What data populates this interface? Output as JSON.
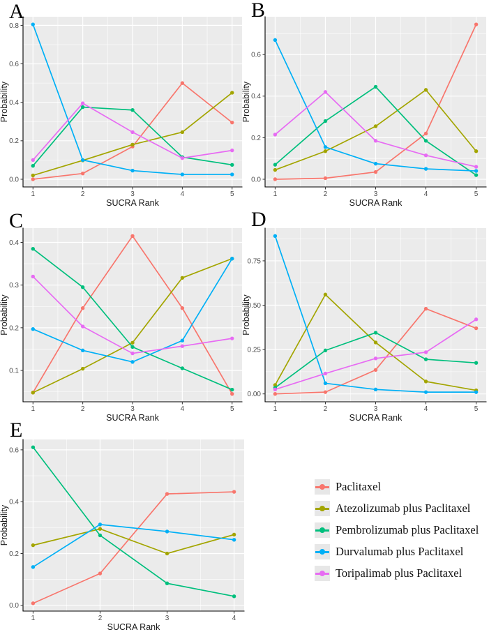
{
  "figure_description": "SUCRA rank probability line charts, panels A-E",
  "colors": {
    "panel_background": "#EBEBEB",
    "gridline": "#FFFFFF",
    "axis_line": "#000000",
    "tick_text": "#4D4D4D",
    "axis_title_text": "#1A1A1A",
    "legend_key_background": "#E7E7E7",
    "paclitaxel": "#F8766D",
    "atezolizumab": "#A3A500",
    "pembrolizumab": "#00BF7D",
    "durvalumab": "#00B0F6",
    "toripalimab": "#E76BF3"
  },
  "legend": {
    "items": [
      {
        "label": "Paclitaxel",
        "color": "#F8766D"
      },
      {
        "label": "Atezolizumab plus Paclitaxel",
        "color": "#A3A500"
      },
      {
        "label": "Pembrolizumab plus Paclitaxel",
        "color": "#00BF7D"
      },
      {
        "label": "Durvalumab plus Paclitaxel",
        "color": "#00B0F6"
      },
      {
        "label": "Toripalimab plus Paclitaxel",
        "color": "#E76BF3"
      }
    ]
  },
  "chart_data": [
    {
      "panel_label": "A",
      "type": "line",
      "xlabel": "SUCRA Rank",
      "ylabel": "Probability",
      "x": [
        1,
        2,
        3,
        4,
        5
      ],
      "xlim": [
        0.8,
        5.2
      ],
      "x_ticks": [
        1,
        2,
        3,
        4,
        5
      ],
      "x_tick_labels": [
        "1",
        "2",
        "3",
        "4",
        "5"
      ],
      "x_minor": [
        1.5,
        2.5,
        3.5,
        4.5
      ],
      "ylim": [
        -0.04,
        0.845
      ],
      "y_ticks": [
        0.0,
        0.2,
        0.4,
        0.6,
        0.8
      ],
      "y_tick_labels": [
        "0.0",
        "0.2",
        "0.4",
        "0.6",
        "0.8"
      ],
      "y_minor": [
        0.1,
        0.3,
        0.5,
        0.7
      ],
      "series": [
        {
          "name": "Paclitaxel",
          "color": "#F8766D",
          "values": [
            0.0,
            0.03,
            0.17,
            0.5,
            0.295
          ]
        },
        {
          "name": "Atezolizumab plus Paclitaxel",
          "color": "#A3A500",
          "values": [
            0.02,
            0.098,
            0.18,
            0.245,
            0.45
          ]
        },
        {
          "name": "Pembrolizumab plus Paclitaxel",
          "color": "#00BF7D",
          "values": [
            0.07,
            0.375,
            0.36,
            0.115,
            0.075
          ]
        },
        {
          "name": "Durvalumab plus Paclitaxel",
          "color": "#00B0F6",
          "values": [
            0.805,
            0.1,
            0.045,
            0.025,
            0.025
          ]
        },
        {
          "name": "Toripalimab plus Paclitaxel",
          "color": "#E76BF3",
          "values": [
            0.1,
            0.395,
            0.245,
            0.11,
            0.15
          ]
        }
      ]
    },
    {
      "panel_label": "B",
      "type": "line",
      "xlabel": "SUCRA Rank",
      "ylabel": "Probability",
      "x": [
        1,
        2,
        3,
        4,
        5
      ],
      "xlim": [
        0.8,
        5.2
      ],
      "x_ticks": [
        1,
        2,
        3,
        4,
        5
      ],
      "x_tick_labels": [
        "1",
        "2",
        "3",
        "4",
        "5"
      ],
      "x_minor": [
        1.5,
        2.5,
        3.5,
        4.5
      ],
      "ylim": [
        -0.037,
        0.782
      ],
      "y_ticks": [
        0.0,
        0.2,
        0.4,
        0.6
      ],
      "y_tick_labels": [
        "0.0",
        "0.2",
        "0.4",
        "0.6"
      ],
      "y_minor": [
        0.1,
        0.3,
        0.5,
        0.7
      ],
      "series": [
        {
          "name": "Paclitaxel",
          "color": "#F8766D",
          "values": [
            0.0,
            0.005,
            0.035,
            0.22,
            0.745
          ]
        },
        {
          "name": "Atezolizumab plus Paclitaxel",
          "color": "#A3A500",
          "values": [
            0.045,
            0.135,
            0.255,
            0.43,
            0.135
          ]
        },
        {
          "name": "Pembrolizumab plus Paclitaxel",
          "color": "#00BF7D",
          "values": [
            0.07,
            0.28,
            0.445,
            0.185,
            0.02
          ]
        },
        {
          "name": "Durvalumab plus Paclitaxel",
          "color": "#00B0F6",
          "values": [
            0.67,
            0.155,
            0.075,
            0.05,
            0.04
          ]
        },
        {
          "name": "Toripalimab plus Paclitaxel",
          "color": "#E76BF3",
          "values": [
            0.215,
            0.42,
            0.185,
            0.115,
            0.06
          ]
        }
      ]
    },
    {
      "panel_label": "C",
      "type": "line",
      "xlabel": "SUCRA Rank",
      "ylabel": "Probability",
      "x": [
        1,
        2,
        3,
        4,
        5
      ],
      "xlim": [
        0.8,
        5.2
      ],
      "x_ticks": [
        1,
        2,
        3,
        4,
        5
      ],
      "x_tick_labels": [
        "1",
        "2",
        "3",
        "4",
        "5"
      ],
      "x_minor": [
        1.5,
        2.5,
        3.5,
        4.5
      ],
      "ylim": [
        0.0265,
        0.4335
      ],
      "y_ticks": [
        0.1,
        0.2,
        0.3,
        0.4
      ],
      "y_tick_labels": [
        "0.1",
        "0.2",
        "0.3",
        "0.4"
      ],
      "y_minor": [
        0.05,
        0.15,
        0.25,
        0.35
      ],
      "series": [
        {
          "name": "Paclitaxel",
          "color": "#F8766D",
          "values": [
            0.048,
            0.246,
            0.415,
            0.246,
            0.045
          ]
        },
        {
          "name": "Atezolizumab plus Paclitaxel",
          "color": "#A3A500",
          "values": [
            0.048,
            0.104,
            0.165,
            0.317,
            0.362
          ]
        },
        {
          "name": "Pembrolizumab plus Paclitaxel",
          "color": "#00BF7D",
          "values": [
            0.385,
            0.295,
            0.155,
            0.105,
            0.055
          ]
        },
        {
          "name": "Durvalumab plus Paclitaxel",
          "color": "#00B0F6",
          "values": [
            0.197,
            0.147,
            0.12,
            0.17,
            0.362
          ]
        },
        {
          "name": "Toripalimab plus Paclitaxel",
          "color": "#E76BF3",
          "values": [
            0.32,
            0.203,
            0.14,
            0.157,
            0.175
          ]
        }
      ]
    },
    {
      "panel_label": "D",
      "type": "line",
      "xlabel": "SUCRA Rank",
      "ylabel": "Probability",
      "x": [
        1,
        2,
        3,
        4,
        5
      ],
      "xlim": [
        0.8,
        5.2
      ],
      "x_ticks": [
        1,
        2,
        3,
        4,
        5
      ],
      "x_tick_labels": [
        "1",
        "2",
        "3",
        "4",
        "5"
      ],
      "x_minor": [
        1.5,
        2.5,
        3.5,
        4.5
      ],
      "ylim": [
        -0.0445,
        0.9345
      ],
      "y_ticks": [
        0.0,
        0.25,
        0.5,
        0.75
      ],
      "y_tick_labels": [
        "0.00",
        "0.25",
        "0.50",
        "0.75"
      ],
      "y_minor": [
        0.125,
        0.375,
        0.625,
        0.875
      ],
      "series": [
        {
          "name": "Paclitaxel",
          "color": "#F8766D",
          "values": [
            0.0,
            0.01,
            0.135,
            0.48,
            0.37
          ]
        },
        {
          "name": "Atezolizumab plus Paclitaxel",
          "color": "#A3A500",
          "values": [
            0.05,
            0.56,
            0.29,
            0.07,
            0.02
          ]
        },
        {
          "name": "Pembrolizumab plus Paclitaxel",
          "color": "#00BF7D",
          "values": [
            0.035,
            0.245,
            0.345,
            0.195,
            0.175
          ]
        },
        {
          "name": "Durvalumab plus Paclitaxel",
          "color": "#00B0F6",
          "values": [
            0.89,
            0.06,
            0.025,
            0.01,
            0.01
          ]
        },
        {
          "name": "Toripalimab plus Paclitaxel",
          "color": "#E76BF3",
          "values": [
            0.025,
            0.115,
            0.2,
            0.235,
            0.42
          ]
        }
      ]
    },
    {
      "panel_label": "E",
      "type": "line",
      "xlabel": "SUCRA Rank",
      "ylabel": "Probability",
      "x": [
        1,
        2,
        3,
        4
      ],
      "xlim": [
        0.85,
        4.15
      ],
      "x_ticks": [
        1,
        2,
        3,
        4
      ],
      "x_tick_labels": [
        "1",
        "2",
        "3",
        "4"
      ],
      "x_minor": [
        1.5,
        2.5,
        3.5
      ],
      "ylim": [
        -0.022,
        0.64
      ],
      "y_ticks": [
        0.0,
        0.2,
        0.4,
        0.6
      ],
      "y_tick_labels": [
        "0.0",
        "0.2",
        "0.4",
        "0.6"
      ],
      "y_minor": [
        0.1,
        0.3,
        0.5
      ],
      "series": [
        {
          "name": "Paclitaxel",
          "color": "#F8766D",
          "values": [
            0.008,
            0.123,
            0.43,
            0.438
          ]
        },
        {
          "name": "Atezolizumab plus Paclitaxel",
          "color": "#A3A500",
          "values": [
            0.232,
            0.295,
            0.2,
            0.273
          ]
        },
        {
          "name": "Pembrolizumab plus Paclitaxel",
          "color": "#00BF7D",
          "values": [
            0.61,
            0.27,
            0.085,
            0.035
          ]
        },
        {
          "name": "Durvalumab plus Paclitaxel",
          "color": "#00B0F6",
          "values": [
            0.148,
            0.312,
            0.285,
            0.253
          ]
        }
      ]
    }
  ]
}
